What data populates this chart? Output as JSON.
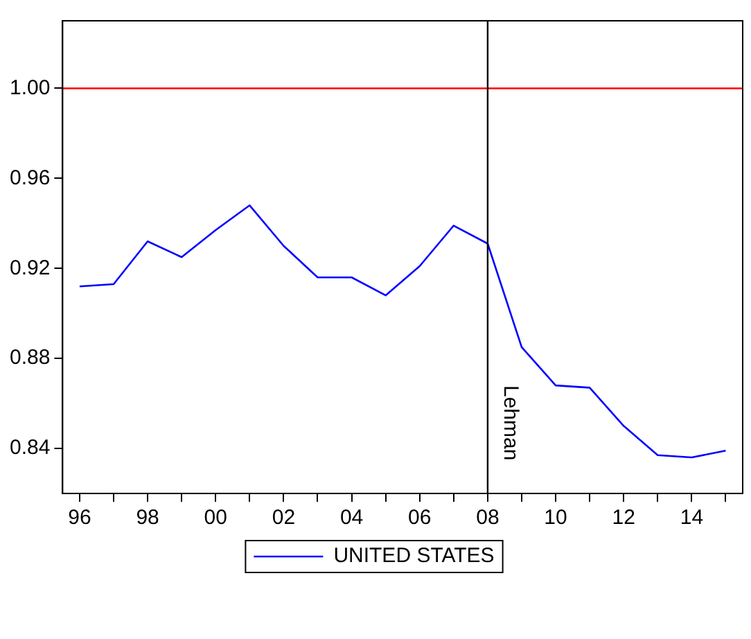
{
  "chart_data": {
    "type": "line",
    "categories": [
      "96",
      null,
      "98",
      null,
      "00",
      null,
      "02",
      null,
      "04",
      null,
      "06",
      null,
      "08",
      null,
      "10",
      null,
      "12",
      null,
      "14",
      null
    ],
    "series": [
      {
        "name": "UNITED STATES",
        "color": "#0000ff",
        "values": [
          0.912,
          0.913,
          0.932,
          0.925,
          0.937,
          0.948,
          0.93,
          0.916,
          0.916,
          0.908,
          0.921,
          0.939,
          0.931,
          0.885,
          0.868,
          0.867,
          0.85,
          0.837,
          0.836,
          0.839
        ]
      }
    ],
    "ylim": [
      0.82,
      1.03
    ],
    "yticks": [
      0.84,
      0.88,
      0.92,
      0.96,
      {
        "value": 1,
        "label": "1.00"
      }
    ],
    "ref_lines": [
      {
        "axis": "y",
        "value": 1,
        "color": "#ff0000"
      },
      {
        "axis": "x",
        "value": "08",
        "label": "Lehman",
        "color": "#000000"
      }
    ],
    "grid": false,
    "legend": "bottom",
    "marker": "none",
    "line_style": "solid"
  }
}
